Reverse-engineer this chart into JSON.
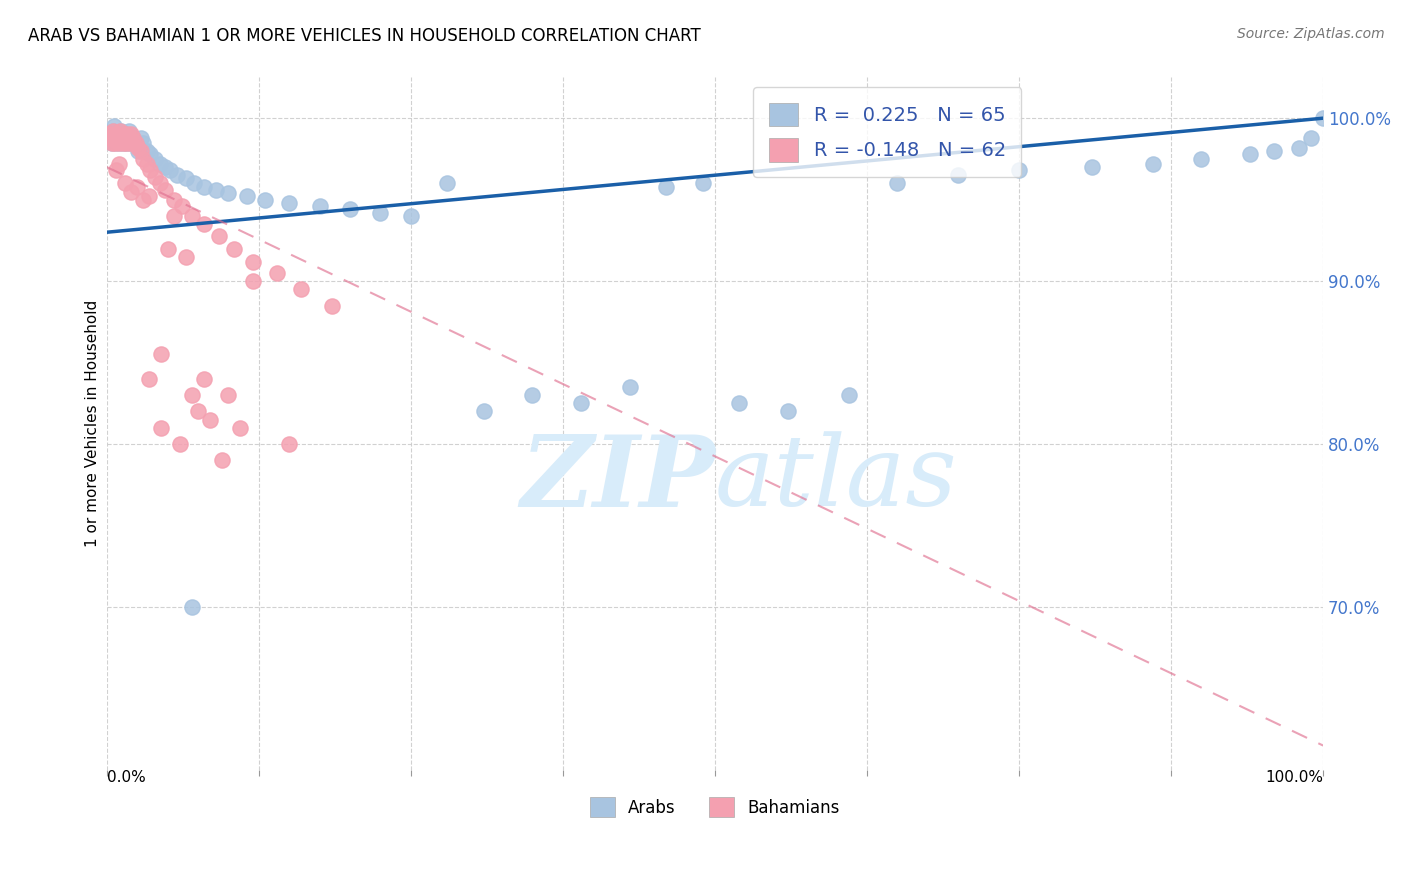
{
  "title": "ARAB VS BAHAMIAN 1 OR MORE VEHICLES IN HOUSEHOLD CORRELATION CHART",
  "source": "Source: ZipAtlas.com",
  "ylabel": "1 or more Vehicles in Household",
  "xlim": [
    0.0,
    1.0
  ],
  "ylim": [
    0.6,
    1.025
  ],
  "ytick_values": [
    0.7,
    0.8,
    0.9,
    1.0
  ],
  "xtick_values": [
    0.0,
    0.125,
    0.25,
    0.375,
    0.5,
    0.625,
    0.75,
    0.875,
    1.0
  ],
  "legend_arab_label": "R =  0.225   N = 65",
  "legend_bah_label": "R = -0.148   N = 62",
  "legend_bottom_arab": "Arabs",
  "legend_bottom_bah": "Bahamians",
  "arab_color": "#a8c4e0",
  "bah_color": "#f4a0b0",
  "arab_trend_color": "#1a5fa8",
  "bah_trend_color": "#e07090",
  "watermark_color": "#d8ecfa",
  "arab_trend_y0": 0.93,
  "arab_trend_y1": 1.0,
  "bah_trend_y0": 0.97,
  "bah_trend_y1": 0.615,
  "arab_scatter_x": [
    0.002,
    0.003,
    0.004,
    0.005,
    0.006,
    0.007,
    0.008,
    0.009,
    0.01,
    0.011,
    0.012,
    0.013,
    0.014,
    0.015,
    0.016,
    0.017,
    0.018,
    0.019,
    0.02,
    0.022,
    0.024,
    0.026,
    0.028,
    0.03,
    0.033,
    0.036,
    0.04,
    0.044,
    0.048,
    0.052,
    0.058,
    0.065,
    0.072,
    0.08,
    0.09,
    0.1,
    0.115,
    0.13,
    0.15,
    0.175,
    0.2,
    0.225,
    0.25,
    0.28,
    0.31,
    0.35,
    0.39,
    0.43,
    0.46,
    0.49,
    0.52,
    0.56,
    0.61,
    0.65,
    0.7,
    0.75,
    0.81,
    0.86,
    0.9,
    0.94,
    0.96,
    0.98,
    0.99,
    1.0,
    0.07
  ],
  "arab_scatter_y": [
    0.988,
    0.99,
    0.985,
    0.992,
    0.995,
    0.988,
    0.985,
    0.99,
    0.988,
    0.985,
    0.992,
    0.988,
    0.985,
    0.99,
    0.988,
    0.985,
    0.992,
    0.988,
    0.985,
    0.988,
    0.985,
    0.98,
    0.988,
    0.985,
    0.98,
    0.978,
    0.975,
    0.972,
    0.97,
    0.968,
    0.965,
    0.963,
    0.96,
    0.958,
    0.956,
    0.954,
    0.952,
    0.95,
    0.948,
    0.946,
    0.944,
    0.942,
    0.94,
    0.96,
    0.82,
    0.83,
    0.825,
    0.835,
    0.958,
    0.96,
    0.825,
    0.82,
    0.83,
    0.96,
    0.965,
    0.968,
    0.97,
    0.972,
    0.975,
    0.978,
    0.98,
    0.982,
    0.988,
    1.0,
    0.7
  ],
  "bah_scatter_x": [
    0.002,
    0.003,
    0.004,
    0.005,
    0.006,
    0.007,
    0.008,
    0.009,
    0.01,
    0.011,
    0.012,
    0.013,
    0.014,
    0.015,
    0.016,
    0.017,
    0.018,
    0.019,
    0.02,
    0.022,
    0.024,
    0.026,
    0.028,
    0.03,
    0.033,
    0.036,
    0.04,
    0.044,
    0.048,
    0.055,
    0.062,
    0.07,
    0.08,
    0.092,
    0.105,
    0.12,
    0.14,
    0.16,
    0.185,
    0.03,
    0.055,
    0.12,
    0.045,
    0.06,
    0.095,
    0.075,
    0.085,
    0.11,
    0.015,
    0.02,
    0.025,
    0.035,
    0.01,
    0.008,
    0.05,
    0.065,
    0.045,
    0.08,
    0.1,
    0.15,
    0.035,
    0.07
  ],
  "bah_scatter_y": [
    0.99,
    0.988,
    0.985,
    0.992,
    0.988,
    0.985,
    0.99,
    0.988,
    0.985,
    0.992,
    0.988,
    0.985,
    0.99,
    0.988,
    0.985,
    0.99,
    0.988,
    0.985,
    0.99,
    0.988,
    0.985,
    0.982,
    0.98,
    0.975,
    0.972,
    0.968,
    0.964,
    0.96,
    0.956,
    0.95,
    0.946,
    0.94,
    0.935,
    0.928,
    0.92,
    0.912,
    0.905,
    0.895,
    0.885,
    0.95,
    0.94,
    0.9,
    0.81,
    0.8,
    0.79,
    0.82,
    0.815,
    0.81,
    0.96,
    0.955,
    0.958,
    0.952,
    0.972,
    0.968,
    0.92,
    0.915,
    0.855,
    0.84,
    0.83,
    0.8,
    0.84,
    0.83
  ]
}
